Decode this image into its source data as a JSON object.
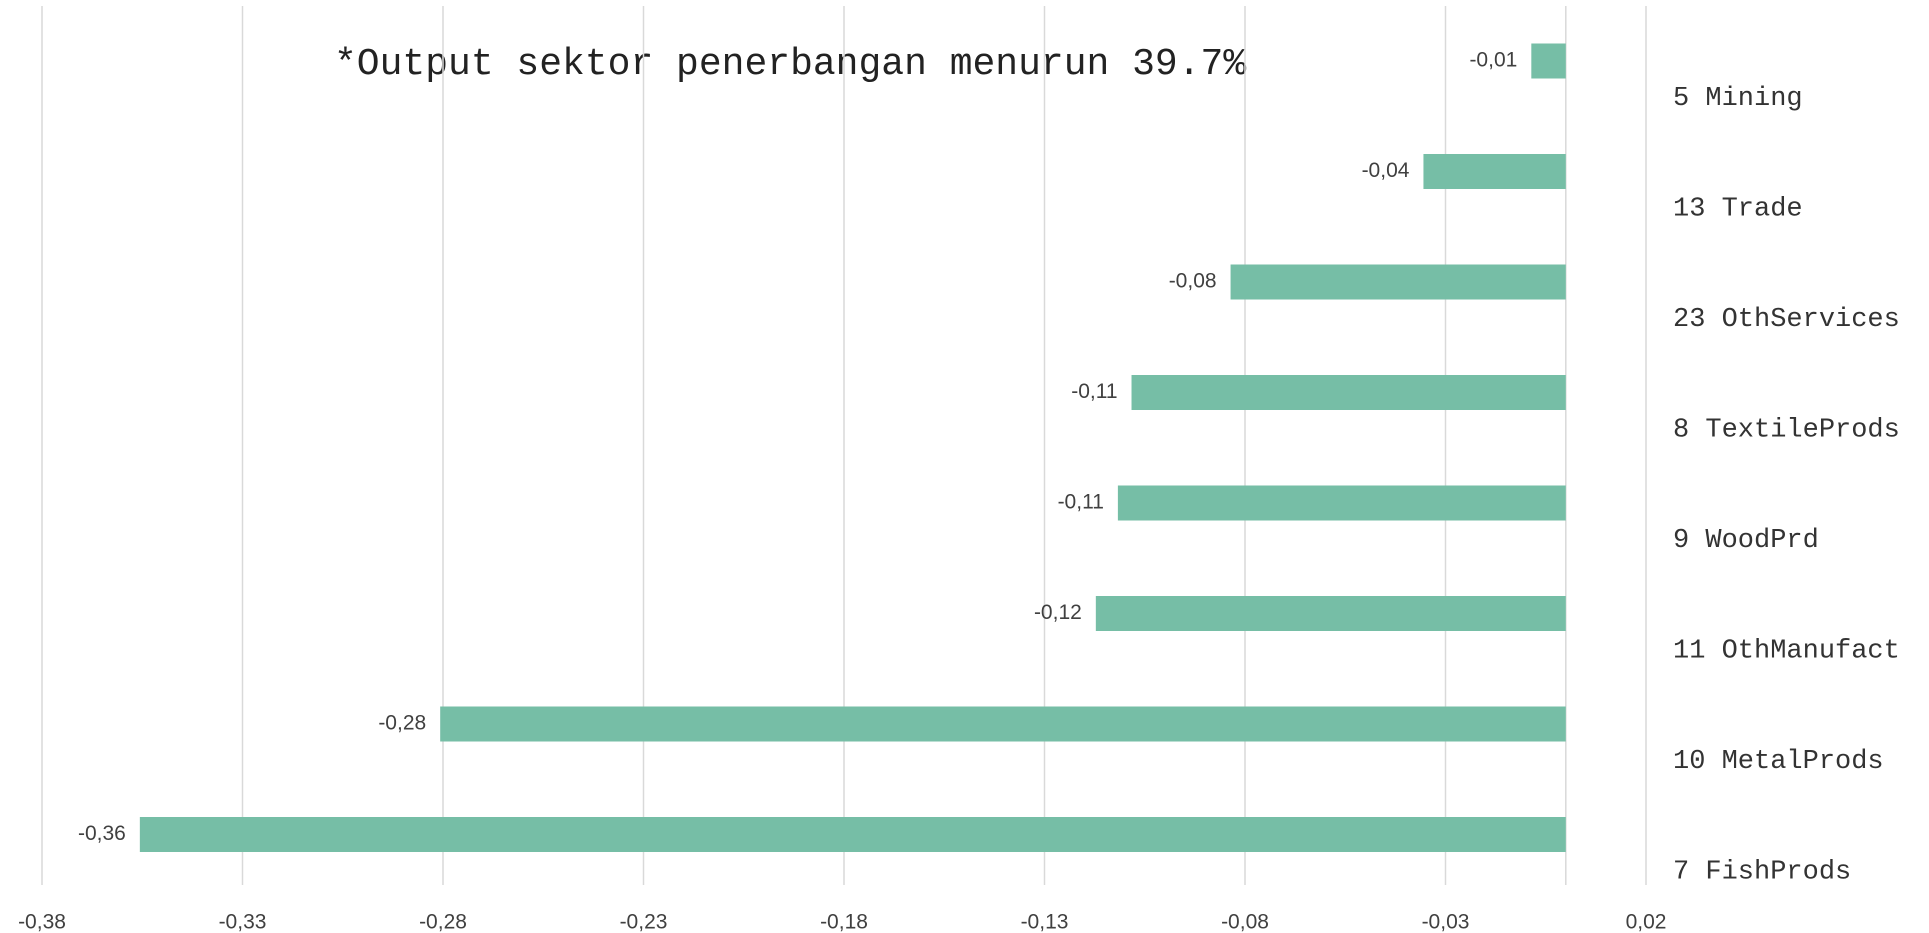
{
  "chart_data": {
    "type": "barh",
    "annotation": "*Output sektor penerbangan menurun 39.7%",
    "categories": [
      "5 Mining",
      "13 Trade",
      "23 OthServices",
      "8 TextileProds",
      "9 WoodPrd",
      "11 OthManufact",
      "10 MetalProds",
      "7 FishProds"
    ],
    "values": [
      -0.0086,
      -0.0355,
      -0.0836,
      -0.1083,
      -0.1117,
      -0.1172,
      -0.2807,
      -0.3556
    ],
    "value_labels": [
      "-0,01",
      "-0,04",
      "-0,08",
      "-0,11",
      "-0,11",
      "-0,12",
      "-0,28",
      "-0,36"
    ],
    "color": "#76bea6",
    "xlim": [
      -0.38,
      0.02
    ],
    "xticks": [
      {
        "value": -0.38,
        "label": "-0,38"
      },
      {
        "value": -0.33,
        "label": "-0,33"
      },
      {
        "value": -0.28,
        "label": "-0,28"
      },
      {
        "value": -0.23,
        "label": "-0,23"
      },
      {
        "value": -0.18,
        "label": "-0,18"
      },
      {
        "value": -0.13,
        "label": "-0,13"
      },
      {
        "value": -0.08,
        "label": "-0,08"
      },
      {
        "value": -0.03,
        "label": "-0,03"
      },
      {
        "value": 0.02,
        "label": "0,02"
      }
    ],
    "grid": true
  }
}
